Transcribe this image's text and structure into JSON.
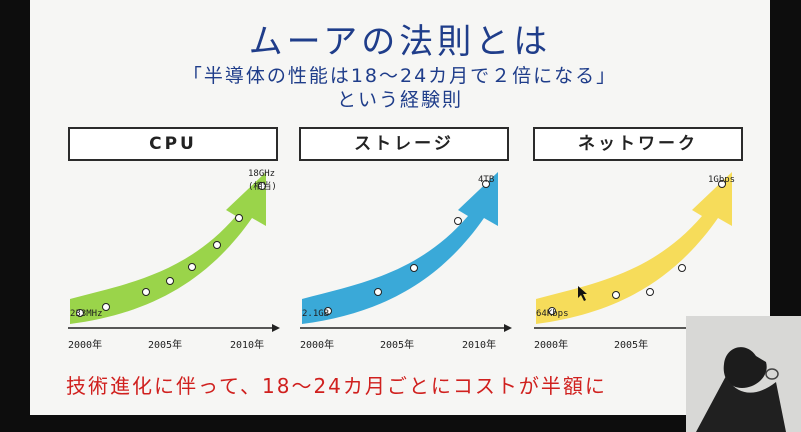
{
  "slide": {
    "title": "ムーアの法則とは",
    "subtitle_line1": "「半導体の性能は18〜24カ月で２倍になる」",
    "subtitle_line2": "という経験則",
    "bottom_text": "技術進化に伴って、18〜24カ月ごとにコストが半額に"
  },
  "colors": {
    "title": "#1f3d8a",
    "bottom_text": "#d0201e",
    "cpu_arrow": "#9ad44a",
    "storage_arrow": "#3aa9d8",
    "network_arrow": "#f6dc5a"
  },
  "chart_data": [
    {
      "type": "line",
      "title": "CPU",
      "x_ticks": [
        "2000年",
        "2005年",
        "2010年"
      ],
      "start_label": "233MHz",
      "end_label": "18GHz",
      "end_sublabel": "(相当)",
      "arrow_color": "#9ad44a"
    },
    {
      "type": "line",
      "title": "ストレージ",
      "x_ticks": [
        "2000年",
        "2005年",
        "2010年"
      ],
      "start_label": "2.1GB",
      "end_label": "4TB",
      "arrow_color": "#3aa9d8"
    },
    {
      "type": "line",
      "title": "ネットワーク",
      "x_ticks": [
        "2000年",
        "2005年"
      ],
      "start_label": "64Kbps",
      "end_label": "1Gbps",
      "arrow_color": "#f6dc5a"
    }
  ]
}
